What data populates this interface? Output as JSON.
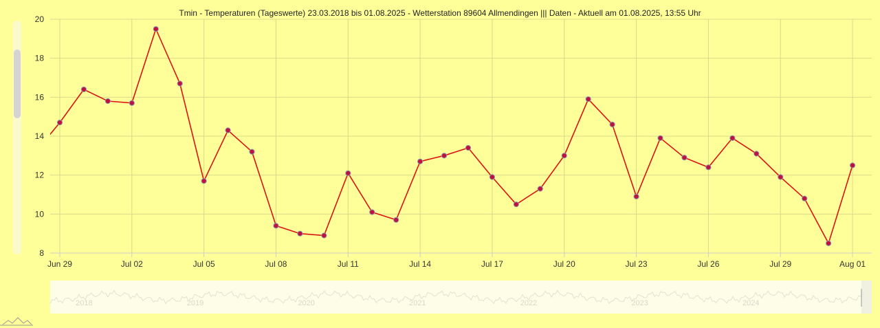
{
  "chart_data": {
    "type": "line",
    "title": "Tmin - Temperaturen (Tageswerte) 23.03.2018 bis 01.08.2025 - Wetterstation 89604 Allmendingen ||| Daten - Aktuell am 01.08.2025, 13:55 Uhr",
    "xlabel": "",
    "ylabel": "",
    "ylim": [
      8,
      20
    ],
    "y_ticks": [
      "8",
      "10",
      "12",
      "14",
      "16",
      "18",
      "20"
    ],
    "x_ticks": [
      "Jun 29",
      "Jul 02",
      "Jul 05",
      "Jul 08",
      "Jul 11",
      "Jul 14",
      "Jul 17",
      "Jul 20",
      "Jul 23",
      "Jul 26",
      "Jul 29",
      "Aug 01"
    ],
    "x_tick_days": [
      0,
      3,
      6,
      9,
      12,
      15,
      18,
      21,
      24,
      27,
      30,
      33
    ],
    "x_range_days": [
      -0.4,
      33.8
    ],
    "grid": true,
    "line_color": "#dd1111",
    "marker_color": "#c01040",
    "series": [
      {
        "x": [
          "2025-06-28",
          "2025-06-29",
          "2025-06-30",
          "2025-07-01",
          "2025-07-02",
          "2025-07-03",
          "2025-07-04",
          "2025-07-05",
          "2025-07-06",
          "2025-07-07",
          "2025-07-08",
          "2025-07-09",
          "2025-07-10",
          "2025-07-11",
          "2025-07-12",
          "2025-07-13",
          "2025-07-14",
          "2025-07-15",
          "2025-07-16",
          "2025-07-17",
          "2025-07-18",
          "2025-07-19",
          "2025-07-20",
          "2025-07-21",
          "2025-07-22",
          "2025-07-23",
          "2025-07-24",
          "2025-07-25",
          "2025-07-26",
          "2025-07-27",
          "2025-07-28",
          "2025-07-29",
          "2025-07-30",
          "2025-07-31",
          "2025-08-01"
        ],
        "values": [
          13.2,
          14.7,
          16.4,
          15.8,
          15.7,
          19.5,
          16.7,
          11.7,
          14.3,
          13.2,
          9.4,
          9.0,
          8.9,
          12.1,
          10.1,
          9.7,
          12.7,
          13.0,
          13.4,
          11.9,
          10.5,
          11.3,
          13.0,
          15.9,
          14.6,
          10.9,
          13.9,
          12.9,
          12.4,
          13.9,
          13.1,
          11.9,
          10.8,
          8.5,
          12.5
        ]
      }
    ]
  },
  "navigator": {
    "years": [
      "2018",
      "2019",
      "2020",
      "2021",
      "2022",
      "2023",
      "2024"
    ]
  }
}
